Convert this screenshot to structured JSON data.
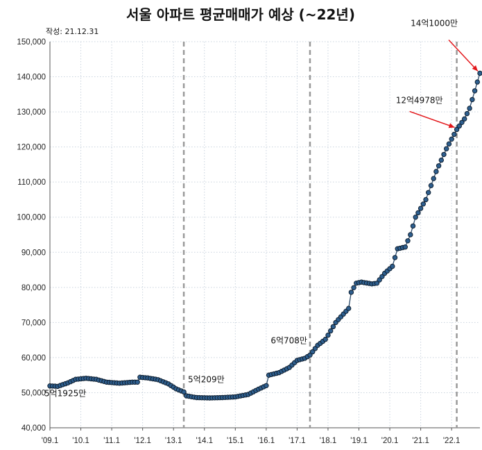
{
  "chart_data": {
    "type": "line",
    "title": "서울 아파트 평균매매가 예상 (~22년)",
    "subtitle": "작성: 21.12.31",
    "ylim": [
      40000,
      150000
    ],
    "yticks": [
      40000,
      50000,
      60000,
      70000,
      80000,
      90000,
      100000,
      110000,
      120000,
      130000,
      140000,
      150000
    ],
    "ytick_labels": [
      "40,000",
      "50,000",
      "60,000",
      "70,000",
      "80,000",
      "90,000",
      "100,000",
      "110,000",
      "120,000",
      "130,000",
      "140,000",
      "150,000"
    ],
    "xlim": [
      "2009-01",
      "2022-12"
    ],
    "xticks": [
      "2009-01",
      "2010-01",
      "2011-01",
      "2012-01",
      "2013-01",
      "2014-01",
      "2015-01",
      "2016-01",
      "2017-01",
      "2018-01",
      "2019-01",
      "2020-01",
      "2021-01",
      "2022-01"
    ],
    "xtick_labels": [
      "'09.1",
      "'10.1",
      "'11.1",
      "'12.1",
      "'13.1",
      "'14.1",
      "'15.1",
      "'16.1",
      "'17.1",
      "'18.1",
      "'19.1",
      "'20.1",
      "'21.1",
      "'22.1"
    ],
    "dashed_markers": [
      "2013-05",
      "2017-06",
      "2022-03"
    ],
    "series": [
      {
        "keypoints": [
          [
            "2009-01",
            51925
          ],
          [
            "2009-04",
            51800
          ],
          [
            "2009-08",
            52800
          ],
          [
            "2009-11",
            53800
          ],
          [
            "2010-03",
            54100
          ],
          [
            "2010-07",
            53800
          ],
          [
            "2010-11",
            53000
          ],
          [
            "2011-04",
            52700
          ],
          [
            "2011-09",
            53000
          ],
          [
            "2011-11",
            53000
          ],
          [
            "2011-12",
            54400
          ],
          [
            "2012-03",
            54200
          ],
          [
            "2012-07",
            53700
          ],
          [
            "2012-11",
            52500
          ],
          [
            "2013-02",
            51100
          ],
          [
            "2013-04",
            50500
          ],
          [
            "2013-05",
            50209
          ],
          [
            "2013-06",
            49100
          ],
          [
            "2013-10",
            48600
          ],
          [
            "2014-03",
            48500
          ],
          [
            "2014-08",
            48600
          ],
          [
            "2015-01",
            48800
          ],
          [
            "2015-06",
            49500
          ],
          [
            "2015-10",
            51000
          ],
          [
            "2016-01",
            52000
          ],
          [
            "2016-02",
            55000
          ],
          [
            "2016-06",
            55700
          ],
          [
            "2016-10",
            57200
          ],
          [
            "2017-01",
            59200
          ],
          [
            "2017-04",
            59800
          ],
          [
            "2017-06",
            60708
          ],
          [
            "2017-09",
            63500
          ],
          [
            "2017-12",
            65200
          ],
          [
            "2018-04",
            70000
          ],
          [
            "2018-09",
            74000
          ],
          [
            "2018-10",
            78600
          ],
          [
            "2018-12",
            81200
          ],
          [
            "2019-02",
            81500
          ],
          [
            "2019-06",
            81000
          ],
          [
            "2019-08",
            81200
          ],
          [
            "2019-11",
            84000
          ],
          [
            "2020-02",
            86000
          ],
          [
            "2020-04",
            91000
          ],
          [
            "2020-07",
            91500
          ],
          [
            "2020-09",
            95000
          ],
          [
            "2020-11",
            100000
          ],
          [
            "2021-03",
            105000
          ],
          [
            "2021-07",
            113000
          ],
          [
            "2021-11",
            119500
          ],
          [
            "2022-03",
            124978
          ],
          [
            "2022-06",
            128000
          ],
          [
            "2022-08",
            131000
          ],
          [
            "2022-12",
            141000
          ]
        ]
      }
    ],
    "annotations": [
      {
        "text": "5억1925만",
        "x": "2009-01",
        "y": 51925
      },
      {
        "text": "5억209만",
        "x": "2013-05",
        "y": 50209
      },
      {
        "text": "6억708만",
        "x": "2017-06",
        "y": 60708
      },
      {
        "text": "12억4978만",
        "x": "2022-03",
        "y": 124978,
        "arrow": true,
        "color": "#e3171b"
      },
      {
        "text": "14억1000만",
        "x": "2022-12",
        "y": 141000,
        "arrow": true,
        "color": "#e3171b"
      }
    ],
    "grid": true,
    "colors": {
      "line": "#2b4a6a",
      "marker_fill": "#2e5f8f",
      "marker_edge": "#0f1f30",
      "arrow": "#e3171b",
      "dashed": "#999999",
      "grid": "#c9d3de"
    }
  }
}
